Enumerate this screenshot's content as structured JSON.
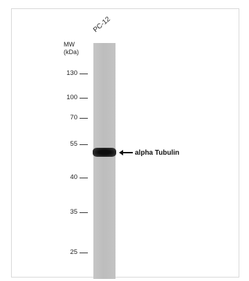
{
  "blot": {
    "sample_label": "PC-12",
    "mw_title_line1": "MW",
    "mw_title_line2": "(kDa)",
    "markers": [
      {
        "label": "130",
        "kda": 130
      },
      {
        "label": "100",
        "kda": 100
      },
      {
        "label": "70",
        "kda": 70
      },
      {
        "label": "55",
        "kda": 55
      },
      {
        "label": "40",
        "kda": 40
      },
      {
        "label": "35",
        "kda": 35
      },
      {
        "label": "25",
        "kda": 25
      }
    ],
    "band_label": "alpha Tubulin",
    "band_kda": 52,
    "colors": {
      "lane": "#c0c0c0",
      "band": "#111111"
    },
    "icons": {
      "annotation_arrow": "arrow-left-icon"
    }
  }
}
